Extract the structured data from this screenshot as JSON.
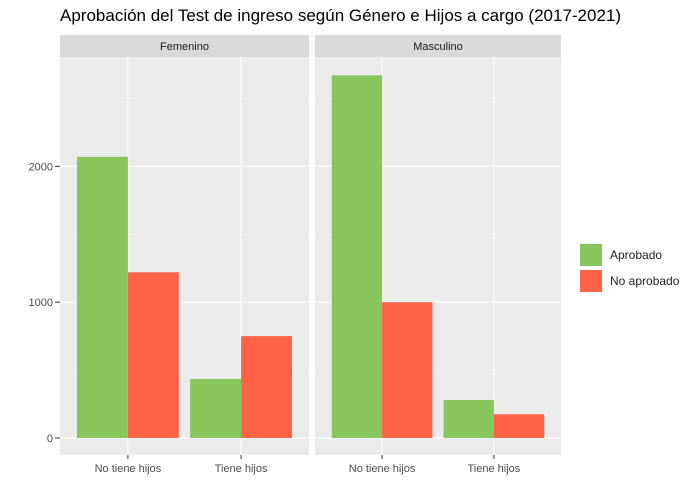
{
  "chart_data": {
    "type": "bar",
    "title": "Aprobación del Test de ingreso según Género e Hijos a cargo (2017-2021)",
    "xlabel": "",
    "ylabel": "",
    "ylim": [
      0,
      2800
    ],
    "yticks": [
      0,
      1000,
      2000
    ],
    "ytick_labels": [
      "0",
      "1000",
      "2000"
    ],
    "grid": true,
    "legend_position": "right",
    "categories": [
      "No tiene hijos",
      "Tiene hijos"
    ],
    "colors": {
      "Aprobado": "#88c55c",
      "No aprobado": "#ff6347"
    },
    "legend": [
      "Aprobado",
      "No aprobado"
    ],
    "facets": [
      {
        "label": "Femenino",
        "series": [
          {
            "name": "Aprobado",
            "values": [
              2070,
              435
            ]
          },
          {
            "name": "No aprobado",
            "values": [
              1220,
              750
            ]
          }
        ]
      },
      {
        "label": "Masculino",
        "series": [
          {
            "name": "Aprobado",
            "values": [
              2670,
              280
            ]
          },
          {
            "name": "No aprobado",
            "values": [
              1000,
              175
            ]
          }
        ]
      }
    ]
  }
}
